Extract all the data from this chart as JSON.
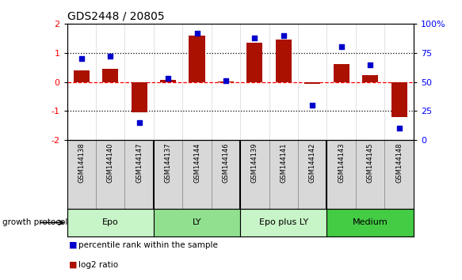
{
  "title": "GDS2448 / 20805",
  "samples": [
    "GSM144138",
    "GSM144140",
    "GSM144147",
    "GSM144137",
    "GSM144144",
    "GSM144146",
    "GSM144139",
    "GSM144141",
    "GSM144142",
    "GSM144143",
    "GSM144145",
    "GSM144148"
  ],
  "log2_ratio": [
    0.4,
    0.45,
    -1.05,
    0.08,
    1.6,
    0.02,
    1.35,
    1.45,
    -0.07,
    0.62,
    0.22,
    -1.2
  ],
  "percentile": [
    70,
    72,
    15,
    53,
    92,
    51,
    88,
    90,
    30,
    80,
    65,
    10
  ],
  "groups": [
    {
      "label": "Epo",
      "indices": [
        0,
        1,
        2
      ],
      "color": "#c8f5c8"
    },
    {
      "label": "LY",
      "indices": [
        3,
        4,
        5
      ],
      "color": "#90e090"
    },
    {
      "label": "Epo plus LY",
      "indices": [
        6,
        7,
        8
      ],
      "color": "#c8f5c8"
    },
    {
      "label": "Medium",
      "indices": [
        9,
        10,
        11
      ],
      "color": "#44cc44"
    }
  ],
  "bar_color": "#aa1100",
  "dot_color": "#0000cc",
  "ylim_left": [
    -2,
    2
  ],
  "ylim_right": [
    0,
    100
  ],
  "yticks_left": [
    -2,
    -1,
    0,
    1,
    2
  ],
  "yticks_right": [
    0,
    25,
    50,
    75,
    100
  ],
  "yticklabels_right": [
    "0",
    "25",
    "50",
    "75",
    "100%"
  ],
  "legend_bar_label": "log2 ratio",
  "legend_dot_label": "percentile rank within the sample",
  "growth_protocol_label": "growth protocol",
  "background_color": "#ffffff",
  "group_boundaries": [
    2.5,
    5.5,
    8.5
  ]
}
